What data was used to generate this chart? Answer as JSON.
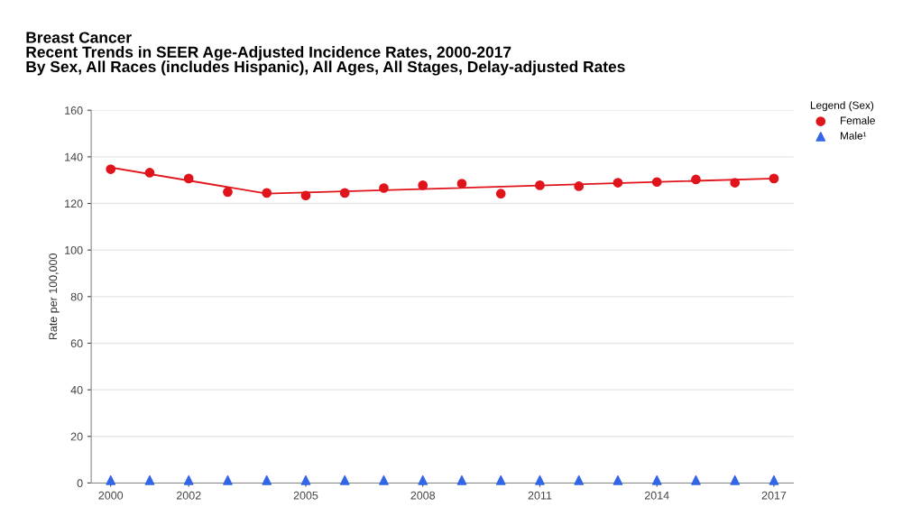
{
  "chart_data": {
    "type": "scatter",
    "title": "Breast Cancer\nRecent Trends in SEER Age-Adjusted Incidence Rates, 2000-2017\nBy Sex, All Races (includes Hispanic), All Ages, All Stages, Delay-adjusted Rates",
    "ylabel": "Rate per 100,000",
    "legend_title": "Legend (Sex)",
    "legend": "top right",
    "x": [
      2000,
      2001,
      2002,
      2003,
      2004,
      2005,
      2006,
      2007,
      2008,
      2009,
      2010,
      2011,
      2012,
      2013,
      2014,
      2015,
      2016,
      2017
    ],
    "series": [
      {
        "name": "Female",
        "color": "#e0141b",
        "marker": "circle",
        "values": [
          134.7,
          133.2,
          130.7,
          124.9,
          124.5,
          123.4,
          124.5,
          126.6,
          127.8,
          128.5,
          124.2,
          127.8,
          127.4,
          128.9,
          129.2,
          130.3,
          128.9,
          130.7
        ]
      },
      {
        "name": "Male¹",
        "color": "#3366e6",
        "marker": "triangle",
        "values": [
          1.2,
          1.2,
          1.2,
          1.2,
          1.2,
          1.2,
          1.2,
          1.2,
          1.2,
          1.2,
          1.2,
          1.2,
          1.2,
          1.2,
          1.2,
          1.2,
          1.2,
          1.2
        ]
      },
      {
        "type": "line",
        "color": "#e0141b",
        "x": [
          2000,
          2004,
          2017
        ],
        "values": [
          135.4,
          124.2,
          130.7
        ]
      }
    ],
    "xlim": [
      1999.5,
      2017.5
    ],
    "xticks": [
      2000,
      2002,
      2005,
      2008,
      2011,
      2014,
      2017
    ],
    "ylim": [
      0,
      160
    ],
    "yticks": [
      0,
      20,
      40,
      60,
      80,
      100,
      120,
      140,
      160
    ],
    "grid": "y"
  }
}
